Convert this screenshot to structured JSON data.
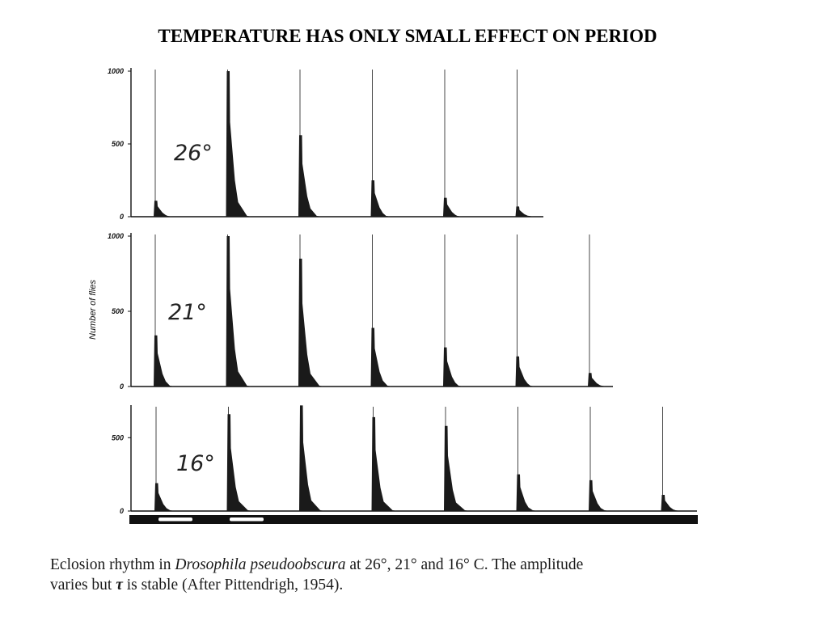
{
  "title": "TEMPERATURE HAS ONLY SMALL EFFECT ON PERIOD",
  "ylabel": "Number of flies",
  "caption": {
    "part1": "Eclosion rhythm in ",
    "species": "Drosophila pseudoobscura",
    "part2": " at 26°, 21° and 16° C. The amplitude",
    "line2a": "varies but ",
    "tau": "τ",
    "line2b": " is stable (After Pittendrigh, 1954)."
  },
  "colors": {
    "ink": "#111111",
    "bar": "#1a1a1a"
  },
  "chart_data": [
    {
      "type": "bar",
      "label": "26°",
      "ylim": [
        0,
        1000
      ],
      "yticks": [
        "0",
        "500",
        "1000"
      ],
      "peaks": [
        110,
        1000,
        560,
        250,
        130,
        70
      ]
    },
    {
      "type": "bar",
      "label": "21°",
      "ylim": [
        0,
        1000
      ],
      "yticks": [
        "0",
        "500",
        "1000"
      ],
      "peaks": [
        340,
        1000,
        850,
        390,
        260,
        200,
        90
      ]
    },
    {
      "type": "bar",
      "label": "16°",
      "ylim": [
        0,
        700
      ],
      "yticks": [
        "0",
        "500"
      ],
      "peaks": [
        190,
        660,
        720,
        640,
        580,
        250,
        210,
        110
      ]
    }
  ],
  "light_dark_bar": {
    "light_periods": 2
  }
}
